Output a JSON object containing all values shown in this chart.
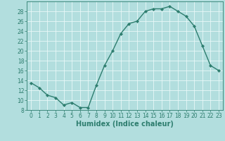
{
  "xlabel": "Humidex (Indice chaleur)",
  "ylabel": "",
  "x": [
    0,
    1,
    2,
    3,
    4,
    5,
    6,
    7,
    8,
    9,
    10,
    11,
    12,
    13,
    14,
    15,
    16,
    17,
    18,
    19,
    20,
    21,
    22,
    23
  ],
  "y": [
    13.5,
    12.5,
    11.0,
    10.5,
    9.0,
    9.5,
    8.5,
    8.5,
    13.0,
    17.0,
    20.0,
    23.5,
    25.5,
    26.0,
    28.0,
    28.5,
    28.5,
    29.0,
    28.0,
    27.0,
    25.0,
    21.0,
    17.0,
    16.0
  ],
  "line_color": "#2d7d6e",
  "marker": "D",
  "marker_size": 2.2,
  "bg_color": "#b2dede",
  "grid_color": "#e8f8f8",
  "ylim": [
    8,
    30
  ],
  "xlim": [
    -0.5,
    23.5
  ],
  "yticks": [
    8,
    10,
    12,
    14,
    16,
    18,
    20,
    22,
    24,
    26,
    28
  ],
  "xticks": [
    0,
    1,
    2,
    3,
    4,
    5,
    6,
    7,
    8,
    9,
    10,
    11,
    12,
    13,
    14,
    15,
    16,
    17,
    18,
    19,
    20,
    21,
    22,
    23
  ],
  "tick_fontsize": 5.5,
  "xlabel_fontsize": 7.0,
  "line_width": 1.0
}
